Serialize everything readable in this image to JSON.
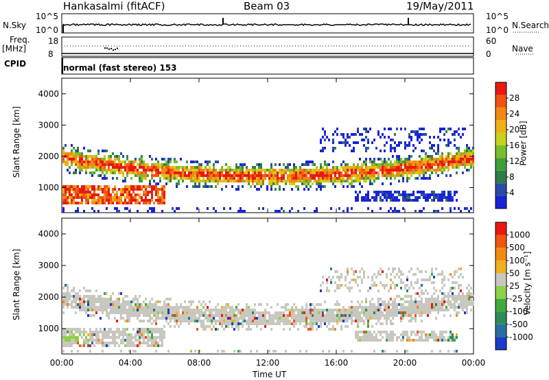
{
  "header": {
    "station": "Hankasalmi (fitACF)",
    "beam": "Beam 03",
    "date": "19/May/2011"
  },
  "left_labels": {
    "nsky": "N.Sky",
    "freq": "Freq.",
    "freq_unit": "[MHz]",
    "cpid": "CPID"
  },
  "right_labels": {
    "nsearch": "N.Search",
    "nave": "Nave"
  },
  "strip_ticks": {
    "nsky_top": "10^5",
    "nsky_bottom": "10^0",
    "nsearch_top": "10^5",
    "nsearch_bottom": "10^0",
    "freq_top": "18",
    "freq_bottom": "8",
    "nave_top": "60",
    "nave_bottom": "0"
  },
  "cpid_text": "normal (fast stereo) 153",
  "chart_data": [
    {
      "type": "heatmap",
      "name_panel": "power",
      "ylabel": "Slant Range [km]",
      "xlabel": "Time UT",
      "xticks": [
        "00:00",
        "04:00",
        "08:00",
        "12:00",
        "16:00",
        "20:00",
        "00:00"
      ],
      "yticks": [
        "1000",
        "2000",
        "3000",
        "4000"
      ],
      "ylim": [
        200,
        4500
      ],
      "xlim_hours": [
        0,
        24
      ],
      "colorbar": {
        "label": "Power [dB]",
        "ticks": [
          "4",
          "8",
          "12",
          "16",
          "20",
          "24",
          "28"
        ],
        "colors": [
          "#1a22d8",
          "#2b4aa8",
          "#2f7d4a",
          "#3f9e3a",
          "#78be2a",
          "#c8d21c",
          "#f0b012",
          "#f28a12",
          "#f05512",
          "#e81a10"
        ]
      }
    },
    {
      "type": "heatmap",
      "name_panel": "velocity",
      "ylabel": "Slant Range [km]",
      "xlabel": "Time UT",
      "xticks": [
        "00:00",
        "04:00",
        "08:00",
        "12:00",
        "16:00",
        "20:00",
        "00:00"
      ],
      "yticks": [
        "1000",
        "2000",
        "3000",
        "4000"
      ],
      "ylim": [
        200,
        4500
      ],
      "xlim_hours": [
        0,
        24
      ],
      "colorbar": {
        "label": "Velocity [m s⁻¹]",
        "ticks": [
          "1000",
          "500",
          "100",
          "50",
          "25",
          "-25",
          "-100",
          "-500",
          "-1000"
        ],
        "colors": [
          "#1a3cc8",
          "#2a6fa0",
          "#2f8a5a",
          "#3faa3a",
          "#8ed04a",
          "#c8c8c0",
          "#f0b020",
          "#f28a12",
          "#f05512",
          "#e81a10"
        ]
      }
    }
  ]
}
